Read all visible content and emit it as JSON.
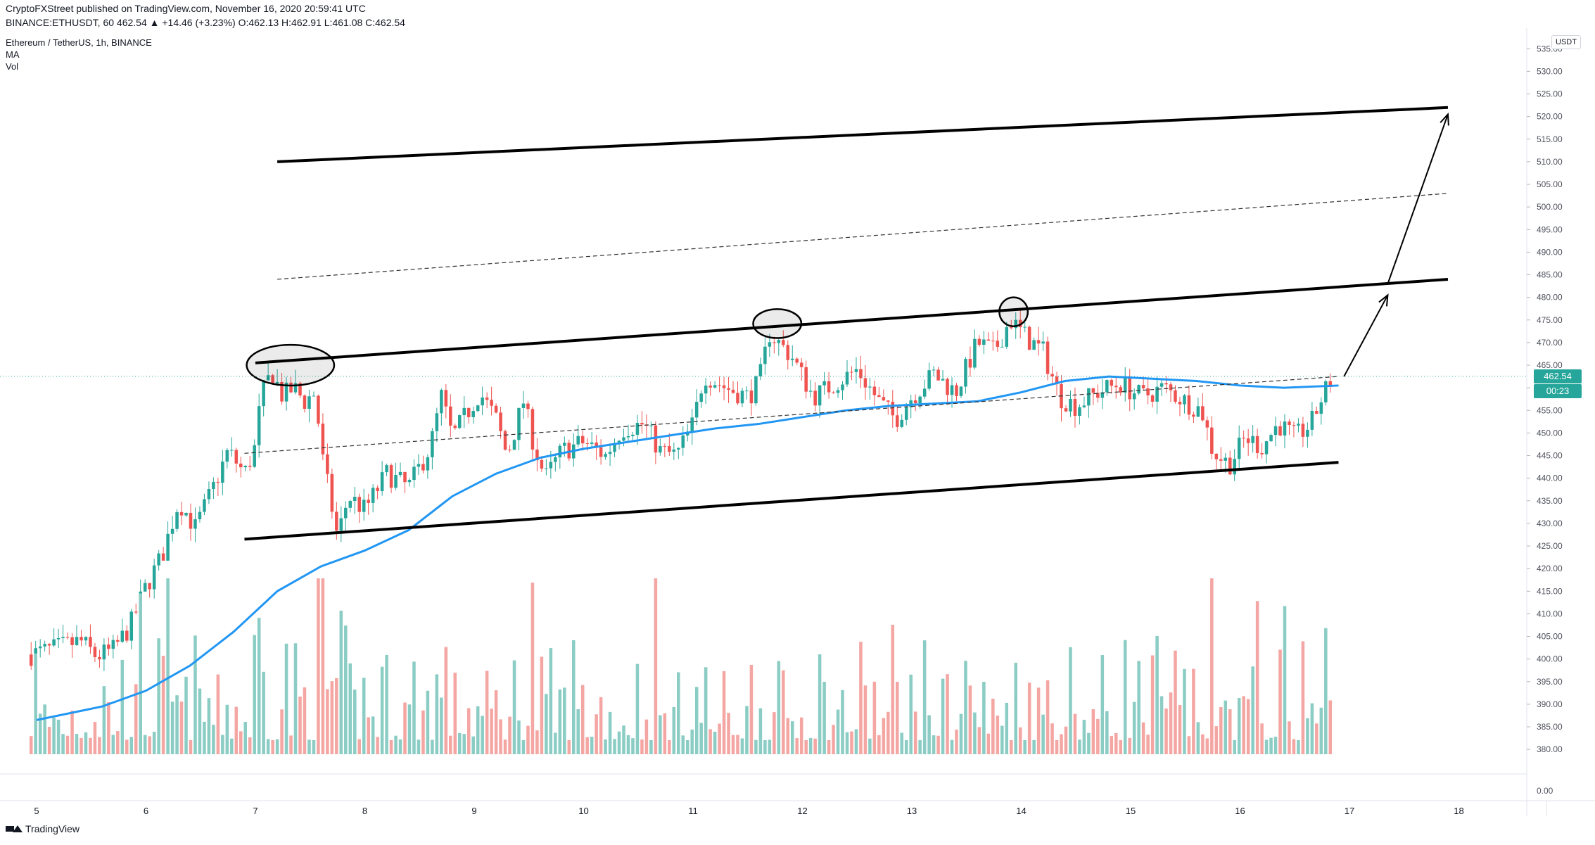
{
  "header": {
    "line1": "CryptoFXStreet published on TradingView.com, November 16, 2020 20:59:41 UTC",
    "line2": "BINANCE:ETHUSDT, 60  462.54  ▲  +14.46 (+3.23%)  O:462.13  H:462.91  L:461.08  C:462.54",
    "legend": [
      "Ethereum / TetherUS, 1h, BINANCE",
      "MA",
      "Vol"
    ]
  },
  "footer": {
    "brand": "TradingView"
  },
  "axis": {
    "unit_button": "USDT",
    "last_price_label": "462.54",
    "countdown_label": "00:23"
  },
  "colors": {
    "up": "#26a69a",
    "down": "#ef5350",
    "up_vol": "#8bcdc4",
    "down_vol": "#f4a6a3",
    "ma": "#2196f3",
    "tag": "#26a69a"
  },
  "chart_data": {
    "type": "candlestick",
    "symbol": "ETHUSDT",
    "timeframe": "1h",
    "x_tick_labels": [
      "5",
      "6",
      "7",
      "8",
      "9",
      "10",
      "11",
      "12",
      "13",
      "14",
      "15",
      "16",
      "17",
      "18"
    ],
    "y_tick_labels": [
      "535.00",
      "530.00",
      "525.00",
      "520.00",
      "515.00",
      "510.00",
      "505.00",
      "500.00",
      "495.00",
      "490.00",
      "485.00",
      "480.00",
      "475.00",
      "470.00",
      "465.00",
      "460.00",
      "455.00",
      "450.00",
      "445.00",
      "440.00",
      "435.00",
      "430.00",
      "425.00",
      "420.00",
      "415.00",
      "410.00",
      "405.00",
      "400.00",
      "395.00",
      "390.00",
      "385.00",
      "380.00"
    ],
    "volume_axis_label": "0.00",
    "ylim": [
      378,
      538
    ],
    "last_price": 462.54,
    "ma_series": [
      [
        5.0,
        386.5
      ],
      [
        5.6,
        389.5
      ],
      [
        6.0,
        393
      ],
      [
        6.4,
        398.5
      ],
      [
        6.8,
        406
      ],
      [
        7.2,
        415
      ],
      [
        7.6,
        420.5
      ],
      [
        8.0,
        424
      ],
      [
        8.4,
        428.5
      ],
      [
        8.8,
        436
      ],
      [
        9.2,
        441
      ],
      [
        9.6,
        444.5
      ],
      [
        10.0,
        446.5
      ],
      [
        10.4,
        448
      ],
      [
        10.8,
        449.5
      ],
      [
        11.2,
        451
      ],
      [
        11.6,
        452
      ],
      [
        12.0,
        453.5
      ],
      [
        12.4,
        455
      ],
      [
        12.8,
        456
      ],
      [
        13.2,
        456.5
      ],
      [
        13.6,
        457
      ],
      [
        14.0,
        459
      ],
      [
        14.4,
        461.5
      ],
      [
        14.8,
        462.5
      ],
      [
        15.2,
        462
      ],
      [
        15.6,
        461.5
      ],
      [
        16.0,
        460.5
      ],
      [
        16.4,
        460
      ],
      [
        16.9,
        460.5
      ]
    ],
    "trendlines": [
      {
        "style": "solid-thick",
        "from": [
          7.2,
          510
        ],
        "to": [
          17.9,
          522
        ]
      },
      {
        "style": "dashed",
        "from": [
          7.2,
          484
        ],
        "to": [
          17.9,
          503
        ]
      },
      {
        "style": "solid-thick",
        "from": [
          7.0,
          465.5
        ],
        "to": [
          17.9,
          484
        ]
      },
      {
        "style": "dashed",
        "from": [
          6.9,
          445.5
        ],
        "to": [
          16.9,
          462.5
        ]
      },
      {
        "style": "solid-thick",
        "from": [
          6.9,
          426.5
        ],
        "to": [
          16.9,
          443.5
        ]
      }
    ],
    "arrows": [
      {
        "from": [
          16.95,
          462.5
        ],
        "to": [
          17.35,
          480.5
        ]
      },
      {
        "from": [
          17.35,
          483
        ],
        "to": [
          17.9,
          520.5
        ]
      }
    ],
    "ellipses": [
      {
        "center": [
          7.32,
          465
        ],
        "rx_days": 0.4,
        "ry_price": 4.5
      },
      {
        "center": [
          11.77,
          474.2
        ],
        "rx_days": 0.22,
        "ry_price": 3.2
      },
      {
        "center": [
          13.93,
          476.8
        ],
        "rx_days": 0.13,
        "ry_price": 3.2
      }
    ],
    "close_path": [
      [
        4.95,
        401
      ],
      [
        5.2,
        402.5
      ],
      [
        5.4,
        404
      ],
      [
        5.55,
        400.5
      ],
      [
        5.7,
        402
      ],
      [
        5.85,
        407
      ],
      [
        6.0,
        416
      ],
      [
        6.15,
        423
      ],
      [
        6.3,
        435
      ],
      [
        6.45,
        429
      ],
      [
        6.6,
        437
      ],
      [
        6.75,
        446
      ],
      [
        6.9,
        441
      ],
      [
        7.0,
        447
      ],
      [
        7.05,
        458
      ],
      [
        7.15,
        463.5
      ],
      [
        7.25,
        458
      ],
      [
        7.35,
        460
      ],
      [
        7.45,
        457
      ],
      [
        7.55,
        459
      ],
      [
        7.6,
        446
      ],
      [
        7.75,
        427
      ],
      [
        7.85,
        436
      ],
      [
        8.0,
        433
      ],
      [
        8.2,
        441
      ],
      [
        8.4,
        438
      ],
      [
        8.6,
        447
      ],
      [
        8.7,
        458
      ],
      [
        8.8,
        449
      ],
      [
        8.95,
        455
      ],
      [
        9.05,
        459
      ],
      [
        9.2,
        453
      ],
      [
        9.3,
        445
      ],
      [
        9.45,
        457
      ],
      [
        9.55,
        447
      ],
      [
        9.65,
        440
      ],
      [
        9.8,
        446
      ],
      [
        10.0,
        448
      ],
      [
        10.2,
        445
      ],
      [
        10.35,
        451
      ],
      [
        10.55,
        452
      ],
      [
        10.7,
        446
      ],
      [
        10.85,
        445
      ],
      [
        11.0,
        452
      ],
      [
        11.1,
        463
      ],
      [
        11.3,
        460
      ],
      [
        11.5,
        458
      ],
      [
        11.6,
        461
      ],
      [
        11.7,
        472
      ],
      [
        11.9,
        467
      ],
      [
        12.1,
        458
      ],
      [
        12.3,
        461
      ],
      [
        12.5,
        464
      ],
      [
        12.7,
        457
      ],
      [
        12.85,
        453
      ],
      [
        13.0,
        458
      ],
      [
        13.2,
        463
      ],
      [
        13.4,
        459
      ],
      [
        13.6,
        470
      ],
      [
        13.75,
        468
      ],
      [
        13.9,
        475
      ],
      [
        14.05,
        471
      ],
      [
        14.2,
        468
      ],
      [
        14.35,
        458
      ],
      [
        14.5,
        456
      ],
      [
        14.7,
        459
      ],
      [
        14.9,
        461
      ],
      [
        15.1,
        458
      ],
      [
        15.3,
        460
      ],
      [
        15.5,
        457
      ],
      [
        15.65,
        455
      ],
      [
        15.75,
        446
      ],
      [
        15.9,
        443
      ],
      [
        16.05,
        449
      ],
      [
        16.2,
        447
      ],
      [
        16.35,
        452
      ],
      [
        16.5,
        449
      ],
      [
        16.65,
        452
      ],
      [
        16.75,
        458
      ],
      [
        16.85,
        462.5
      ]
    ],
    "volume_scale": "relative"
  }
}
